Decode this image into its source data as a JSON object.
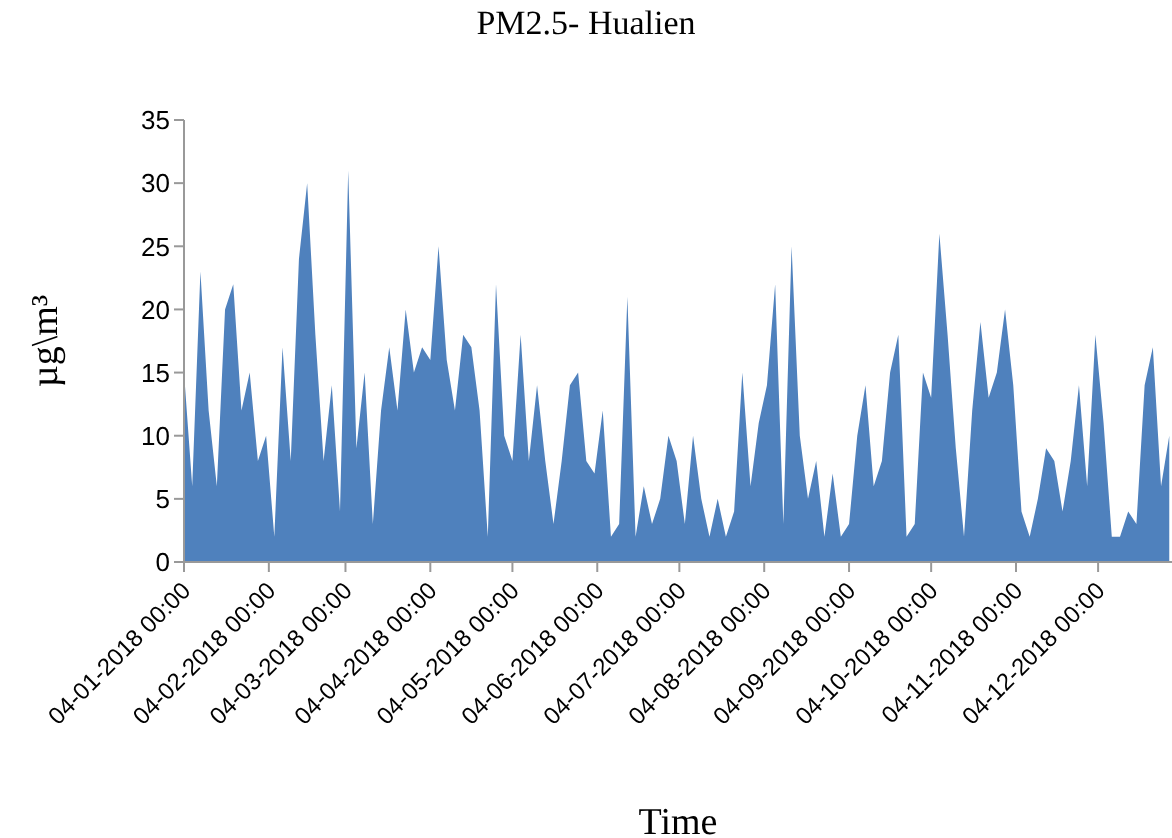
{
  "chart_data": {
    "type": "area",
    "title": "PM2.5- Hualien",
    "xlabel": "Time",
    "ylabel": "µg\\m³",
    "x": [
      "2018-01-04",
      "2018-01-07",
      "2018-01-10",
      "2018-01-13",
      "2018-01-16",
      "2018-01-19",
      "2018-01-22",
      "2018-01-25",
      "2018-01-28",
      "2018-01-31",
      "2018-02-03",
      "2018-02-06",
      "2018-02-09",
      "2018-02-12",
      "2018-02-15",
      "2018-02-18",
      "2018-02-21",
      "2018-02-24",
      "2018-02-27",
      "2018-03-02",
      "2018-03-05",
      "2018-03-08",
      "2018-03-11",
      "2018-03-14",
      "2018-03-17",
      "2018-03-20",
      "2018-03-23",
      "2018-03-26",
      "2018-03-29",
      "2018-04-01",
      "2018-04-04",
      "2018-04-07",
      "2018-04-10",
      "2018-04-13",
      "2018-04-16",
      "2018-04-19",
      "2018-04-22",
      "2018-04-25",
      "2018-04-28",
      "2018-05-01",
      "2018-05-04",
      "2018-05-07",
      "2018-05-10",
      "2018-05-13",
      "2018-05-16",
      "2018-05-19",
      "2018-05-22",
      "2018-05-25",
      "2018-05-28",
      "2018-05-31",
      "2018-06-03",
      "2018-06-06",
      "2018-06-09",
      "2018-06-12",
      "2018-06-15",
      "2018-06-18",
      "2018-06-21",
      "2018-06-24",
      "2018-06-27",
      "2018-06-30",
      "2018-07-03",
      "2018-07-06",
      "2018-07-09",
      "2018-07-12",
      "2018-07-15",
      "2018-07-18",
      "2018-07-21",
      "2018-07-24",
      "2018-07-27",
      "2018-07-30",
      "2018-08-02",
      "2018-08-05",
      "2018-08-08",
      "2018-08-11",
      "2018-08-14",
      "2018-08-17",
      "2018-08-20",
      "2018-08-23",
      "2018-08-26",
      "2018-08-29",
      "2018-09-01",
      "2018-09-04",
      "2018-09-07",
      "2018-09-10",
      "2018-09-13",
      "2018-09-16",
      "2018-09-19",
      "2018-09-22",
      "2018-09-25",
      "2018-09-28",
      "2018-10-01",
      "2018-10-04",
      "2018-10-07",
      "2018-10-10",
      "2018-10-13",
      "2018-10-16",
      "2018-10-19",
      "2018-10-22",
      "2018-10-25",
      "2018-10-28",
      "2018-10-31",
      "2018-11-03",
      "2018-11-06",
      "2018-11-09",
      "2018-11-12",
      "2018-11-15",
      "2018-11-18",
      "2018-11-21",
      "2018-11-24",
      "2018-11-27",
      "2018-11-30",
      "2018-12-03",
      "2018-12-06",
      "2018-12-09",
      "2018-12-12",
      "2018-12-15",
      "2018-12-18",
      "2018-12-21",
      "2018-12-24",
      "2018-12-27",
      "2018-12-30"
    ],
    "series": [
      {
        "color": "#4f81bd",
        "values": [
          15,
          6,
          23,
          12,
          6,
          20,
          22,
          12,
          15,
          8,
          10,
          2,
          17,
          8,
          24,
          30,
          18,
          8,
          14,
          4,
          31,
          9,
          15,
          3,
          12,
          17,
          12,
          20,
          15,
          17,
          16,
          25,
          16,
          12,
          18,
          17,
          12,
          2,
          22,
          10,
          8,
          18,
          8,
          14,
          8,
          3,
          8,
          14,
          15,
          8,
          7,
          12,
          2,
          3,
          21,
          2,
          6,
          3,
          5,
          10,
          8,
          3,
          10,
          5,
          2,
          5,
          2,
          4,
          15,
          6,
          11,
          14,
          22,
          3,
          25,
          10,
          5,
          8,
          2,
          7,
          2,
          3,
          10,
          14,
          6,
          8,
          15,
          18,
          2,
          3,
          15,
          13,
          26,
          18,
          9,
          2,
          12,
          19,
          13,
          15,
          20,
          14,
          4,
          2,
          5,
          9,
          8,
          4,
          8,
          14,
          6,
          18,
          11,
          2,
          2,
          4,
          3,
          14,
          17,
          6,
          10
        ]
      }
    ],
    "xlim": [
      "2018-01-04",
      "2018-12-31"
    ],
    "xticks": [
      {
        "value": "2018-01-04",
        "label": "04-01-2018 00:00"
      },
      {
        "value": "2018-02-04",
        "label": "04-02-2018 00:00"
      },
      {
        "value": "2018-03-04",
        "label": "04-03-2018 00:00"
      },
      {
        "value": "2018-04-04",
        "label": "04-04-2018 00:00"
      },
      {
        "value": "2018-05-04",
        "label": "04-05-2018 00:00"
      },
      {
        "value": "2018-06-04",
        "label": "04-06-2018 00:00"
      },
      {
        "value": "2018-07-04",
        "label": "04-07-2018 00:00"
      },
      {
        "value": "2018-08-04",
        "label": "04-08-2018 00:00"
      },
      {
        "value": "2018-09-04",
        "label": "04-09-2018 00:00"
      },
      {
        "value": "2018-10-04",
        "label": "04-10-2018 00:00"
      },
      {
        "value": "2018-11-04",
        "label": "04-11-2018 00:00"
      },
      {
        "value": "2018-12-04",
        "label": "04-12-2018 00:00"
      }
    ],
    "ylim": [
      0,
      35
    ],
    "yticks": [
      0,
      5,
      10,
      15,
      20,
      25,
      30,
      35
    ]
  }
}
